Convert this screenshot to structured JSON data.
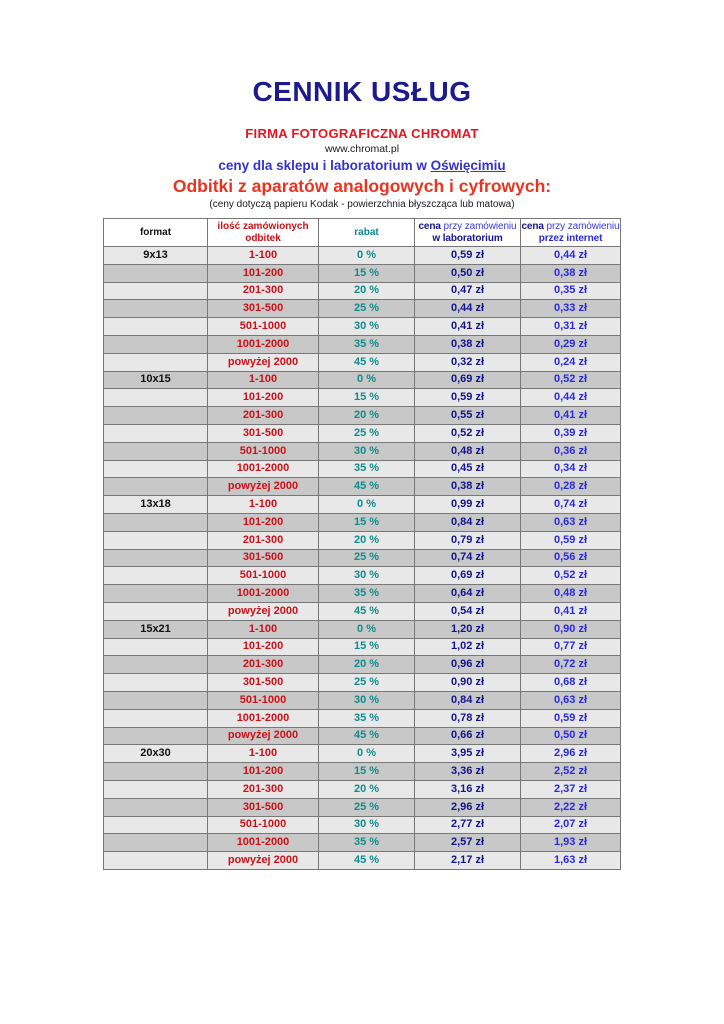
{
  "header": {
    "title": "CENNIK USŁUG",
    "company": "FIRMA FOTOGRAFICZNA CHROMAT",
    "website": "www.chromat.pl",
    "location_prefix": "ceny dla sklepu i laboratorium w",
    "location_city": "Oświęcimiu",
    "section_title": "Odbitki z aparatów analogowych i cyfrowych:",
    "section_note": "(ceny dotyczą papieru Kodak - powierzchnia błyszcząca lub matowa)"
  },
  "colors": {
    "title_navy": "#1b1b8c",
    "brand_red": "#e8141e",
    "location_blue": "#3433cc",
    "section_red": "#e93420",
    "quantity_red": "#cd1119",
    "rabat_teal": "#108c8c",
    "price_lab_navy": "#14148c",
    "price_internet_blue": "#2a2ae0",
    "header_link_blue": "#3a3ae0",
    "row_light": "#e8e8e8",
    "row_dark": "#c8c8c8",
    "border_gray": "#777777"
  },
  "table": {
    "headers": {
      "format_label": "format",
      "quantity_label": "ilość zamówionych odbitek",
      "rabat_label": "rabat",
      "lab_cena": "cena",
      "lab_przy": "przy zamówieniu",
      "lab_line2": "w laboratorium",
      "net_cena": "cena",
      "net_przy": "przy zamówieniu",
      "net_line2": "przez internet"
    },
    "groups": [
      {
        "format": "9x13",
        "rows": [
          [
            "1-100",
            "0 %",
            "0,59 zł",
            "0,44 zł"
          ],
          [
            "101-200",
            "15 %",
            "0,50 zł",
            "0,38 zł"
          ],
          [
            "201-300",
            "20 %",
            "0,47 zł",
            "0,35 zł"
          ],
          [
            "301-500",
            "25 %",
            "0,44 zł",
            "0,33 zł"
          ],
          [
            "501-1000",
            "30 %",
            "0,41 zł",
            "0,31 zł"
          ],
          [
            "1001-2000",
            "35 %",
            "0,38 zł",
            "0,29 zł"
          ],
          [
            "powyżej 2000",
            "45 %",
            "0,32 zł",
            "0,24 zł"
          ]
        ]
      },
      {
        "format": "10x15",
        "rows": [
          [
            "1-100",
            "0 %",
            "0,69 zł",
            "0,52 zł"
          ],
          [
            "101-200",
            "15 %",
            "0,59 zł",
            "0,44 zł"
          ],
          [
            "201-300",
            "20 %",
            "0,55 zł",
            "0,41 zł"
          ],
          [
            "301-500",
            "25 %",
            "0,52 zł",
            "0,39 zł"
          ],
          [
            "501-1000",
            "30 %",
            "0,48 zł",
            "0,36 zł"
          ],
          [
            "1001-2000",
            "35 %",
            "0,45 zł",
            "0,34 zł"
          ],
          [
            "powyżej 2000",
            "45 %",
            "0,38 zł",
            "0,28 zł"
          ]
        ]
      },
      {
        "format": "13x18",
        "rows": [
          [
            "1-100",
            "0 %",
            "0,99 zł",
            "0,74 zł"
          ],
          [
            "101-200",
            "15 %",
            "0,84 zł",
            "0,63 zł"
          ],
          [
            "201-300",
            "20 %",
            "0,79 zł",
            "0,59 zł"
          ],
          [
            "301-500",
            "25 %",
            "0,74 zł",
            "0,56 zł"
          ],
          [
            "501-1000",
            "30 %",
            "0,69 zł",
            "0,52 zł"
          ],
          [
            "1001-2000",
            "35 %",
            "0,64 zł",
            "0,48 zł"
          ],
          [
            "powyżej 2000",
            "45 %",
            "0,54 zł",
            "0,41 zł"
          ]
        ]
      },
      {
        "format": "15x21",
        "rows": [
          [
            "1-100",
            "0 %",
            "1,20 zł",
            "0,90 zł"
          ],
          [
            "101-200",
            "15 %",
            "1,02 zł",
            "0,77 zł"
          ],
          [
            "201-300",
            "20 %",
            "0,96 zł",
            "0,72 zł"
          ],
          [
            "301-500",
            "25 %",
            "0,90 zł",
            "0,68 zł"
          ],
          [
            "501-1000",
            "30 %",
            "0,84 zł",
            "0,63 zł"
          ],
          [
            "1001-2000",
            "35 %",
            "0,78 zł",
            "0,59 zł"
          ],
          [
            "powyżej 2000",
            "45 %",
            "0,66 zł",
            "0,50 zł"
          ]
        ]
      },
      {
        "format": "20x30",
        "rows": [
          [
            "1-100",
            "0 %",
            "3,95 zł",
            "2,96 zł"
          ],
          [
            "101-200",
            "15 %",
            "3,36 zł",
            "2,52 zł"
          ],
          [
            "201-300",
            "20 %",
            "3,16 zł",
            "2,37 zł"
          ],
          [
            "301-500",
            "25 %",
            "2,96 zł",
            "2,22 zł"
          ],
          [
            "501-1000",
            "30 %",
            "2,77 zł",
            "2,07 zł"
          ],
          [
            "1001-2000",
            "35 %",
            "2,57 zł",
            "1,93 zł"
          ],
          [
            "powyżej 2000",
            "45 %",
            "2,17 zł",
            "1,63 zł"
          ]
        ]
      }
    ]
  }
}
